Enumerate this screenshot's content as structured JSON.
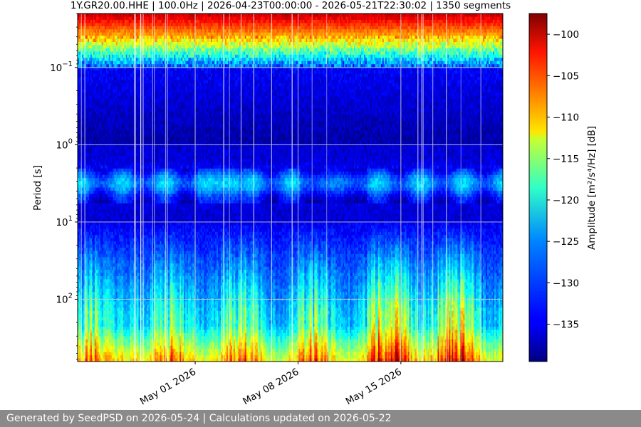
{
  "chart_data": {
    "type": "heatmap",
    "title": "1Y.GR20.00.HHE | 100.0Hz | 2026-04-23T00:00:00 - 2026-05-21T22:30:02 | 1350 segments",
    "xlabel": "",
    "ylabel": "Period [s]",
    "y_scale": "log",
    "y_inverted": true,
    "x_range": [
      "2026-04-23T00:00:00",
      "2026-05-21T22:30:02"
    ],
    "y_range": [
      0.02,
      640
    ],
    "x_ticks": [
      {
        "date": "2026-05-01",
        "label": "May 01 2026"
      },
      {
        "date": "2026-05-08",
        "label": "May 08 2026"
      },
      {
        "date": "2026-05-15",
        "label": "May 15 2026"
      }
    ],
    "y_ticks": [
      {
        "value": 0.1,
        "base": "10",
        "exp": "−1"
      },
      {
        "value": 1,
        "base": "10",
        "exp": "0"
      },
      {
        "value": 10,
        "base": "10",
        "exp": "1"
      },
      {
        "value": 100,
        "base": "10",
        "exp": "2"
      }
    ],
    "grid": true,
    "colormap": "jet",
    "colorbar": {
      "label": "Amplitude [m²/s⁴/Hz] [dB]",
      "range": [
        -139.5,
        -97.5
      ],
      "ticks": [
        -100,
        -105,
        -110,
        -115,
        -120,
        -125,
        -130,
        -135
      ],
      "tick_labels": [
        "−100",
        "−105",
        "−110",
        "−115",
        "−120",
        "−125",
        "−130",
        "−135"
      ]
    },
    "value_bands": [
      {
        "period_range": [
          0.02,
          0.04
        ],
        "db": -100
      },
      {
        "period_range": [
          0.04,
          0.08
        ],
        "db": -120
      },
      {
        "period_range": [
          0.1,
          1
        ],
        "db": -137
      },
      {
        "period_range": [
          2,
          5
        ],
        "db": -129
      },
      {
        "period_range": [
          10,
          100
        ],
        "db": -130
      },
      {
        "period_range": [
          200,
          640
        ],
        "db": -118
      }
    ]
  },
  "footer": {
    "text": "Generated by SeedPSD on 2026-05-24 | Calculations updated on 2026-05-22"
  }
}
